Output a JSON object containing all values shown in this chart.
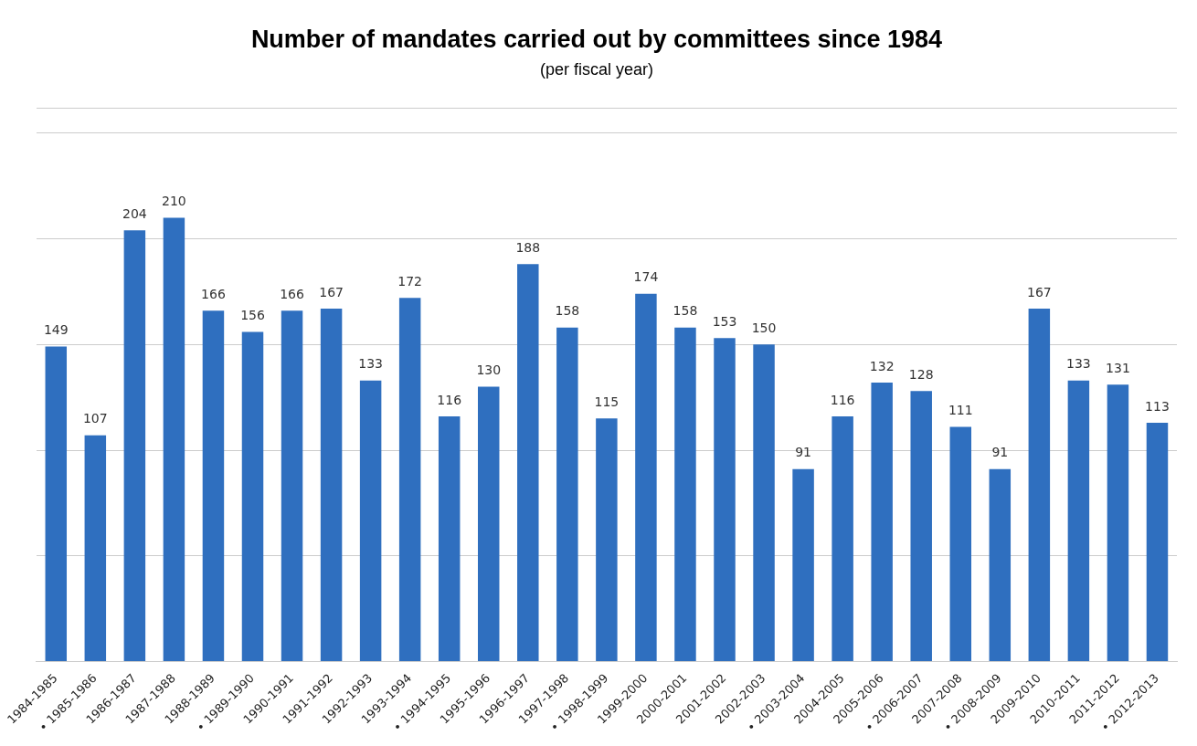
{
  "chart_data": {
    "type": "bar",
    "title": "Number of mandates carried out by committees since 1984",
    "subtitle": "(per fiscal year)",
    "categories": [
      "1984-1985",
      "• 1985-1986",
      "1986-1987",
      "1987-1988",
      "1988-1989",
      "• 1989-1990",
      "1990-1991",
      "1991-1992",
      "1992-1993",
      "1993-1994",
      "• 1994-1995",
      "1995-1996",
      "1996-1997",
      "1997-1998",
      "• 1998-1999",
      "1999-2000",
      "2000-2001",
      "2001-2002",
      "2002-2003",
      "• 2003-2004",
      "2004-2005",
      "2005-2006",
      "• 2006-2007",
      "2007-2008",
      "• 2008-2009",
      "2009-2010",
      "2010-2011",
      "2011-2012",
      "• 2012-2013"
    ],
    "values": [
      149,
      107,
      204,
      210,
      166,
      156,
      166,
      167,
      133,
      172,
      116,
      130,
      188,
      158,
      115,
      174,
      158,
      153,
      150,
      91,
      116,
      132,
      128,
      111,
      91,
      167,
      133,
      131,
      113
    ],
    "color": "#2f6fbf",
    "data_labels": true,
    "ylim": [
      0,
      262
    ],
    "yticks": [
      {
        "value": 0,
        "label": null
      },
      {
        "value": 50,
        "label": null
      },
      {
        "value": 100,
        "label": null
      },
      {
        "value": 150,
        "label": null
      },
      {
        "value": 200,
        "label": null
      },
      {
        "value": 250,
        "label": null
      },
      {
        "value": 262,
        "label": null
      }
    ],
    "grid": "y",
    "tick_labels": "x",
    "legend": false
  }
}
